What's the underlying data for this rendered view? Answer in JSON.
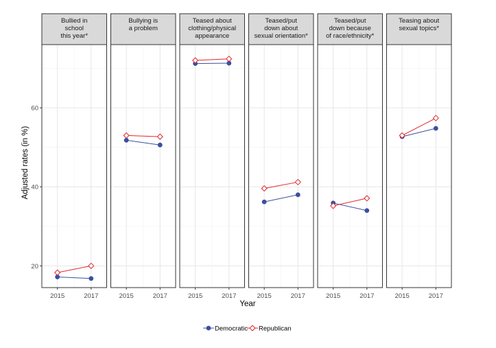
{
  "chart_data": {
    "type": "line",
    "xlabel": "Year",
    "ylabel": "Adjusted rates (in %)",
    "x": [
      2015,
      2017
    ],
    "xticks": [
      "2015",
      "2017"
    ],
    "ylim": [
      14.5,
      76
    ],
    "yticks": [
      20,
      40,
      60
    ],
    "grid": true,
    "legend_position": "bottom",
    "colors": {
      "Democratic": "#3b4fa0",
      "Republican": "#e0262b"
    },
    "legend": [
      {
        "name": "Democratic",
        "marker": "filled-circle"
      },
      {
        "name": "Republican",
        "marker": "open-diamond"
      }
    ],
    "panels": [
      {
        "title_lines": [
          "Bullied in",
          "school",
          "this year*"
        ],
        "series": [
          {
            "name": "Democratic",
            "values": [
              17.2,
              16.8
            ]
          },
          {
            "name": "Republican",
            "values": [
              18.3,
              20.0
            ]
          }
        ]
      },
      {
        "title_lines": [
          "Bullying is",
          "a problem"
        ],
        "series": [
          {
            "name": "Democratic",
            "values": [
              51.8,
              50.6
            ]
          },
          {
            "name": "Republican",
            "values": [
              53.0,
              52.7
            ]
          }
        ]
      },
      {
        "title_lines": [
          "Teased about",
          "clothing/physical",
          "appearance"
        ],
        "series": [
          {
            "name": "Democratic",
            "values": [
              71.2,
              71.3
            ]
          },
          {
            "name": "Republican",
            "values": [
              72.0,
              72.4
            ]
          }
        ]
      },
      {
        "title_lines": [
          "Teased/put",
          "down about",
          "sexual orientation*"
        ],
        "series": [
          {
            "name": "Democratic",
            "values": [
              36.2,
              38.0
            ]
          },
          {
            "name": "Republican",
            "values": [
              39.6,
              41.2
            ]
          }
        ]
      },
      {
        "title_lines": [
          "Teased/put",
          "down because",
          "of race/ethnicity*"
        ],
        "series": [
          {
            "name": "Democratic",
            "values": [
              35.9,
              34.0
            ]
          },
          {
            "name": "Republican",
            "values": [
              35.2,
              37.1
            ]
          }
        ]
      },
      {
        "title_lines": [
          "Teasing about",
          "sexual topics*"
        ],
        "series": [
          {
            "name": "Democratic",
            "values": [
              52.7,
              54.8
            ]
          },
          {
            "name": "Republican",
            "values": [
              53.0,
              57.4
            ]
          }
        ]
      }
    ]
  }
}
